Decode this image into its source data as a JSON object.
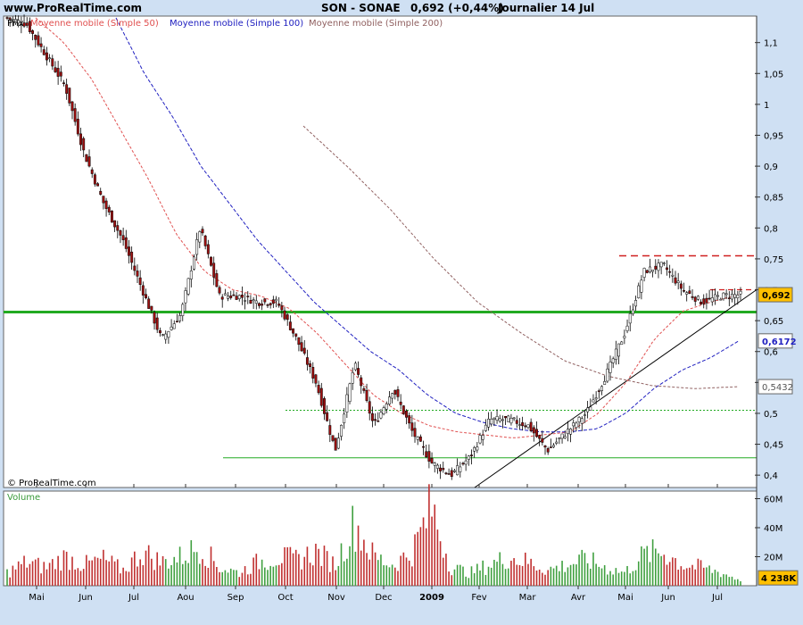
{
  "header": {
    "site": "www.ProRealTime.com",
    "title": "SON - SONAE",
    "price_change": "0,692 (+0,44%)",
    "timeframe": "Journalier  14 Jul"
  },
  "legend": {
    "prefix": "Prix",
    "ma50": "Moyenne mobile (Simple 50)",
    "ma100": "Moyenne mobile (Simple 100)",
    "ma200": "Moyenne mobile (Simple 200)"
  },
  "watermark": "© ProRealTime.com",
  "volume_label": "Volume",
  "colors": {
    "background": "#cfe0f3",
    "panel": "#ffffff",
    "ma50": "#e05050",
    "ma100": "#2020c0",
    "ma200": "#906060",
    "support": "#22aa22",
    "resistance": "#d02020",
    "bull_candle": "#ffffff",
    "bear_candle": "#a01010",
    "last_price_tag": "#ffc000"
  },
  "chart_data": [
    {
      "type": "candlestick",
      "title": "SON - SONAE",
      "ylim": [
        0.38,
        1.14
      ],
      "y_ticks": [
        "1,1",
        "1,05",
        "1",
        "0,95",
        "0,9",
        "0,85",
        "0,8",
        "0,75",
        "0,7",
        "0,65",
        "0,6",
        "0,55",
        "0,5",
        "0,45",
        "0,4"
      ],
      "x_ticks": [
        "Mai",
        "Jun",
        "Jul",
        "Aou",
        "Sep",
        "Oct",
        "Nov",
        "Dec",
        "2009",
        "Fev",
        "Mar",
        "Avr",
        "Mai",
        "Jun",
        "Jul"
      ],
      "series": [
        {
          "name": "Prix",
          "anchor_values": [
            1.14,
            1.13,
            1.08,
            1.03,
            0.92,
            0.84,
            0.78,
            0.7,
            0.62,
            0.66,
            0.8,
            0.69,
            0.69,
            0.68,
            0.68,
            0.62,
            0.55,
            0.44,
            0.58,
            0.48,
            0.54,
            0.47,
            0.42,
            0.4,
            0.43,
            0.49,
            0.49,
            0.48,
            0.44,
            0.47,
            0.5,
            0.56,
            0.63,
            0.73,
            0.74,
            0.7,
            0.68,
            0.69,
            0.692
          ]
        },
        {
          "name": "Moyenne mobile (Simple 50)",
          "anchor_values": [
            1.14,
            1.1,
            1.04,
            0.96,
            0.88,
            0.79,
            0.73,
            0.7,
            0.69,
            0.67,
            0.63,
            0.58,
            0.53,
            0.5,
            0.48,
            0.47,
            0.465,
            0.46,
            0.465,
            0.47,
            0.5,
            0.55,
            0.62,
            0.665,
            0.68,
            0.692
          ]
        },
        {
          "name": "Moyenne mobile (Simple 100)",
          "anchor_values": [
            1.14,
            1.05,
            0.98,
            0.9,
            0.84,
            0.78,
            0.73,
            0.68,
            0.64,
            0.6,
            0.57,
            0.53,
            0.5,
            0.485,
            0.475,
            0.47,
            0.47,
            0.475,
            0.5,
            0.54,
            0.57,
            0.59,
            0.6172
          ]
        },
        {
          "name": "Moyenne mobile (Simple 200)",
          "anchor_values": [
            0.965,
            0.9,
            0.83,
            0.75,
            0.68,
            0.63,
            0.585,
            0.56,
            0.545,
            0.54,
            0.5432
          ]
        }
      ],
      "horizontal_lines": [
        {
          "label": "support",
          "value": 0.664
        },
        {
          "label": "support-dotted",
          "value": 0.505
        },
        {
          "label": "support-low",
          "value": 0.428
        },
        {
          "label": "resistance",
          "value": 0.755
        },
        {
          "label": "resistance-short",
          "value": 0.7
        }
      ],
      "trendline": {
        "from": {
          "x": "Dec",
          "y": 0.38
        },
        "to": {
          "x": "Jul",
          "y": 0.7
        }
      },
      "price_tags": [
        {
          "label": "0,692",
          "value": 0.692
        },
        {
          "label": "0,6172",
          "value": 0.6172
        },
        {
          "label": "0,5432",
          "value": 0.5432
        }
      ]
    },
    {
      "type": "bar",
      "title": "Volume",
      "ylim": [
        0,
        64
      ],
      "y_ticks": [
        "60M",
        "40M",
        "20M"
      ],
      "last_value_label": "4 238K",
      "series": [
        {
          "name": "Volume",
          "anchor_values": [
            10,
            18,
            14,
            22,
            16,
            20,
            12,
            26,
            18,
            22,
            30,
            14,
            10,
            18,
            22,
            20,
            26,
            16,
            48,
            22,
            16,
            26,
            60,
            14,
            10,
            16,
            22,
            18,
            12,
            16,
            20,
            14,
            10,
            24,
            26,
            16,
            14,
            10,
            4.2
          ]
        }
      ]
    }
  ]
}
